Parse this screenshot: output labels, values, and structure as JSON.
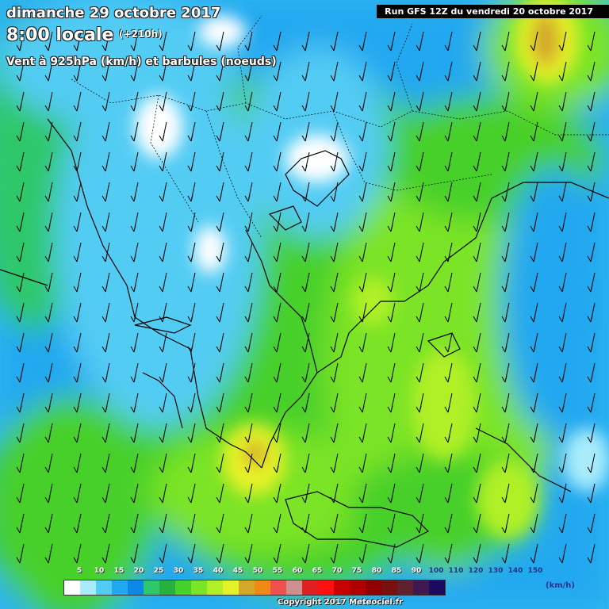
{
  "header": {
    "date": "dimanche 29 octobre 2017",
    "time": "8:00 locale",
    "offset": "(+210h)",
    "parameter": "Vent à 925hPa (km/h) et barbules (noeuds)"
  },
  "run_info": "Run GFS 12Z du vendredi 20 octobre 2017",
  "legend": {
    "labels": [
      "5",
      "10",
      "15",
      "20",
      "25",
      "30",
      "35",
      "40",
      "45",
      "50",
      "55",
      "60",
      "65",
      "70",
      "75",
      "80",
      "85",
      "90",
      "100",
      "110",
      "120",
      "130",
      "140",
      "150"
    ],
    "colors": [
      "#ffffff",
      "#a8ecfc",
      "#52ccf4",
      "#22a8f0",
      "#0c88e6",
      "#2ec86a",
      "#26b040",
      "#46d02a",
      "#7ce428",
      "#b0f028",
      "#e6f228",
      "#d4a82a",
      "#f08a14",
      "#f05050",
      "#cc9090",
      "#e02020",
      "#ff1010",
      "#c80000",
      "#b00000",
      "#900000",
      "#781010",
      "#602030",
      "#401850",
      "#1c0a60"
    ],
    "unit": "(km/h)",
    "dark_label_from_index": 18
  },
  "copyright": "Copyright 2017 Meteociel.fr"
}
